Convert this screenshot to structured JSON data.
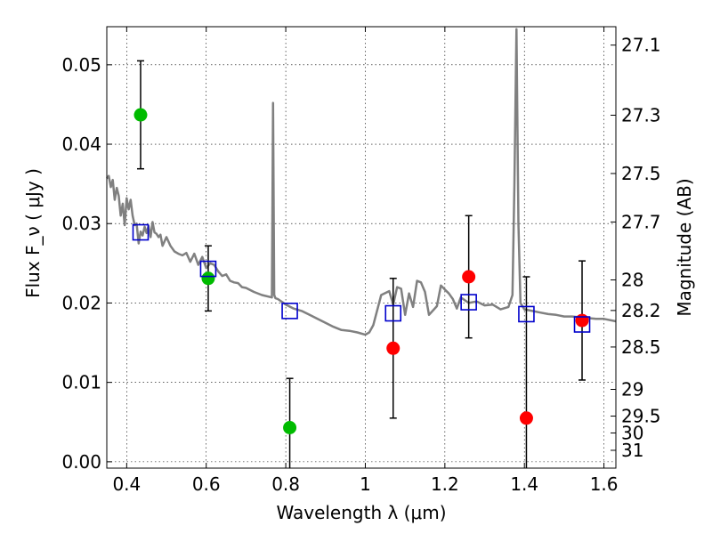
{
  "chart_data": {
    "type": "scatter",
    "xlabel": "Wavelength  λ (μm)",
    "ylabel": "Flux  F_ν  ( μJy )",
    "y2label": "Magnitude (AB)",
    "xlim": [
      0.35,
      1.63
    ],
    "ylim": [
      -0.0008,
      0.0548
    ],
    "grid": true,
    "x_ticks": [
      {
        "value": 0.4,
        "label": "0.4"
      },
      {
        "value": 0.6,
        "label": "0.6"
      },
      {
        "value": 0.8,
        "label": "0.8"
      },
      {
        "value": 1.0,
        "label": "1"
      },
      {
        "value": 1.2,
        "label": "1.2"
      },
      {
        "value": 1.4,
        "label": "1.4"
      },
      {
        "value": 1.6,
        "label": "1.6"
      }
    ],
    "y_ticks": [
      {
        "value": 0.0,
        "label": "0.00"
      },
      {
        "value": 0.01,
        "label": "0.01"
      },
      {
        "value": 0.02,
        "label": "0.02"
      },
      {
        "value": 0.03,
        "label": "0.03"
      },
      {
        "value": 0.04,
        "label": "0.04"
      },
      {
        "value": 0.05,
        "label": "0.05"
      }
    ],
    "y2_ticks": [
      {
        "value": 27.1,
        "label": "27.1"
      },
      {
        "value": 27.3,
        "label": "27.3"
      },
      {
        "value": 27.5,
        "label": "27.5"
      },
      {
        "value": 27.7,
        "label": "27.7"
      },
      {
        "value": 28.0,
        "label": "28"
      },
      {
        "value": 28.2,
        "label": "28.2"
      },
      {
        "value": 28.5,
        "label": "28.5"
      },
      {
        "value": 29.0,
        "label": "29"
      },
      {
        "value": 29.5,
        "label": "29.5"
      },
      {
        "value": 30.0,
        "label": "30"
      },
      {
        "value": 31.0,
        "label": "31"
      }
    ],
    "series": [
      {
        "kind": "line",
        "color": "#808080",
        "x": [
          0.35,
          0.355,
          0.36,
          0.365,
          0.37,
          0.375,
          0.38,
          0.385,
          0.39,
          0.395,
          0.4,
          0.405,
          0.41,
          0.415,
          0.42,
          0.425,
          0.43,
          0.435,
          0.44,
          0.445,
          0.45,
          0.455,
          0.46,
          0.465,
          0.47,
          0.475,
          0.48,
          0.485,
          0.49,
          0.5,
          0.51,
          0.52,
          0.53,
          0.54,
          0.55,
          0.56,
          0.57,
          0.58,
          0.59,
          0.6,
          0.61,
          0.62,
          0.63,
          0.64,
          0.65,
          0.66,
          0.67,
          0.68,
          0.69,
          0.7,
          0.72,
          0.74,
          0.765,
          0.768,
          0.771,
          0.774,
          0.78,
          0.8,
          0.82,
          0.84,
          0.86,
          0.88,
          0.9,
          0.92,
          0.94,
          0.96,
          0.98,
          1.0,
          1.01,
          1.02,
          1.04,
          1.06,
          1.07,
          1.08,
          1.09,
          1.1,
          1.11,
          1.12,
          1.13,
          1.14,
          1.15,
          1.16,
          1.18,
          1.19,
          1.2,
          1.21,
          1.22,
          1.23,
          1.24,
          1.26,
          1.28,
          1.3,
          1.32,
          1.34,
          1.36,
          1.37,
          1.375,
          1.38,
          1.385,
          1.39,
          1.4,
          1.42,
          1.44,
          1.46,
          1.48,
          1.5,
          1.52,
          1.54,
          1.56,
          1.58,
          1.6,
          1.63
        ],
        "y": [
          0.0357,
          0.036,
          0.0346,
          0.0355,
          0.033,
          0.0345,
          0.0335,
          0.031,
          0.0325,
          0.0298,
          0.0332,
          0.0318,
          0.033,
          0.031,
          0.0298,
          0.03,
          0.0275,
          0.029,
          0.0285,
          0.0296,
          0.0288,
          0.0297,
          0.0283,
          0.0302,
          0.0289,
          0.0287,
          0.0283,
          0.0286,
          0.0272,
          0.0283,
          0.0272,
          0.0265,
          0.0262,
          0.026,
          0.0263,
          0.0252,
          0.0262,
          0.0248,
          0.0258,
          0.0244,
          0.025,
          0.0248,
          0.024,
          0.0234,
          0.0236,
          0.0228,
          0.0226,
          0.0225,
          0.022,
          0.0219,
          0.0214,
          0.021,
          0.0207,
          0.0452,
          0.021,
          0.0206,
          0.0205,
          0.0198,
          0.0193,
          0.019,
          0.0185,
          0.018,
          0.0175,
          0.017,
          0.0166,
          0.0165,
          0.0163,
          0.016,
          0.0163,
          0.0172,
          0.021,
          0.0215,
          0.0198,
          0.022,
          0.0218,
          0.0185,
          0.0212,
          0.0195,
          0.0228,
          0.0226,
          0.0214,
          0.0185,
          0.0196,
          0.0222,
          0.0217,
          0.0212,
          0.0205,
          0.0193,
          0.0207,
          0.02,
          0.0202,
          0.0197,
          0.0198,
          0.0192,
          0.0195,
          0.021,
          0.035,
          0.0545,
          0.03,
          0.02,
          0.0192,
          0.019,
          0.0188,
          0.0186,
          0.0185,
          0.0183,
          0.0183,
          0.0182,
          0.0181,
          0.018,
          0.018,
          0.0177
        ]
      },
      {
        "kind": "points",
        "marker": "circle",
        "color": "#00bb00",
        "x": [
          0.435,
          0.605,
          0.81
        ],
        "y": [
          0.0437,
          0.0231,
          0.0043
        ],
        "err": [
          0.0068,
          0.0041,
          0.0062
        ]
      },
      {
        "kind": "points",
        "marker": "circle",
        "color": "#ff0000",
        "x": [
          1.07,
          1.26,
          1.405,
          1.545
        ],
        "y": [
          0.0143,
          0.0233,
          0.0055,
          0.0178
        ],
        "err": [
          0.0088,
          0.0077,
          0.0178,
          0.0075
        ]
      },
      {
        "kind": "points",
        "marker": "open-square",
        "color": "#0000cc",
        "x": [
          0.435,
          0.605,
          0.81,
          1.07,
          1.26,
          1.405,
          1.545
        ],
        "y": [
          0.0289,
          0.0243,
          0.019,
          0.0187,
          0.0201,
          0.0186,
          0.0173
        ]
      }
    ]
  }
}
